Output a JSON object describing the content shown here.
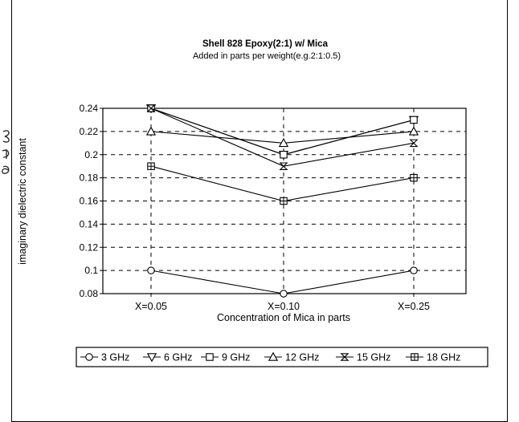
{
  "chart_data": {
    "type": "line",
    "title": "Shell 828 Epoxy(2:1) w/ Mica",
    "subtitle": "Added in parts per weight(e.g.2:1:0.5)",
    "xlabel": "Concentration of Mica in parts",
    "ylabel": "imaginary dielectric constant",
    "categories": [
      "X=0.05",
      "X=0.10",
      "X=0.25"
    ],
    "ylim": [
      0.08,
      0.24
    ],
    "yticks": [
      0.24,
      0.22,
      0.2,
      0.18,
      0.16,
      0.14,
      0.12,
      0.1,
      0.08
    ],
    "grid": true,
    "legend_position": "bottom",
    "series": [
      {
        "name": "3 GHz",
        "marker": "circle",
        "values": [
          0.1,
          0.08,
          0.1
        ]
      },
      {
        "name": "6 GHz",
        "marker": "tri-down",
        "values": [
          0.24,
          0.2,
          0.23
        ]
      },
      {
        "name": "9 GHz",
        "marker": "square",
        "values": [
          0.24,
          0.2,
          0.23
        ]
      },
      {
        "name": "12 GHz",
        "marker": "tri-up",
        "values": [
          0.22,
          0.21,
          0.22
        ]
      },
      {
        "name": "15 GHz",
        "marker": "hourglass",
        "values": [
          0.24,
          0.19,
          0.21
        ]
      },
      {
        "name": "18 GHz",
        "marker": "box-plus",
        "values": [
          0.19,
          0.16,
          0.18
        ]
      }
    ]
  }
}
